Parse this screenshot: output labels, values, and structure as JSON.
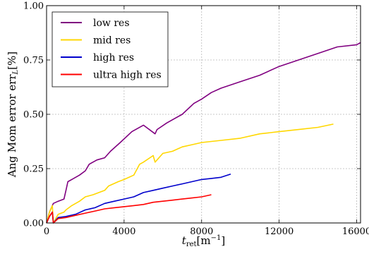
{
  "chart_data": {
    "type": "line",
    "title": "",
    "xlabel": "t_ret[m^-1]",
    "xlabel_parts": {
      "main": "t",
      "sub": "ret",
      "unit_open": "[m",
      "unit_sup": "−1",
      "unit_close": "]"
    },
    "ylabel": "Ang Mom error err_L[%]",
    "ylabel_parts": {
      "main": "Ang Mom error err",
      "sub": "L",
      "unit": "[%]"
    },
    "xlim": [
      0,
      16200
    ],
    "ylim": [
      0,
      1.0
    ],
    "xticks": [
      0,
      4000,
      8000,
      12000,
      16000
    ],
    "xtick_labels": [
      "0",
      "4000",
      "8000",
      "12000",
      "16000"
    ],
    "yticks": [
      0,
      0.25,
      0.5,
      0.75,
      1.0
    ],
    "ytick_labels": [
      "0.00",
      "0.25",
      "0.50",
      "0.75",
      "1.00"
    ],
    "grid": true,
    "legend_position": "top-left",
    "series": [
      {
        "name": "low res",
        "color": "#800080",
        "x": [
          0,
          150,
          300,
          350,
          600,
          900,
          1000,
          1100,
          1300,
          1700,
          2000,
          2200,
          2600,
          3000,
          3300,
          3800,
          4400,
          5000,
          5600,
          5700,
          6200,
          7000,
          7600,
          8000,
          8500,
          9000,
          10000,
          11000,
          12000,
          13000,
          14000,
          15000,
          16000,
          16200
        ],
        "y": [
          0.0,
          0.05,
          0.08,
          0.09,
          0.1,
          0.11,
          0.15,
          0.19,
          0.2,
          0.22,
          0.24,
          0.27,
          0.29,
          0.3,
          0.33,
          0.37,
          0.42,
          0.45,
          0.41,
          0.43,
          0.46,
          0.5,
          0.55,
          0.57,
          0.6,
          0.62,
          0.65,
          0.68,
          0.72,
          0.75,
          0.78,
          0.81,
          0.82,
          0.83
        ]
      },
      {
        "name": "mid res",
        "color": "#ffd700",
        "x": [
          0,
          150,
          300,
          350,
          600,
          900,
          1000,
          1300,
          1700,
          2000,
          2400,
          3000,
          3200,
          3700,
          4000,
          4500,
          4800,
          5000,
          5500,
          5600,
          6000,
          6500,
          7000,
          7500,
          8000,
          8500,
          9000,
          10000,
          11000,
          12000,
          13000,
          14000,
          14800
        ],
        "y": [
          0.0,
          0.05,
          0.08,
          0.0,
          0.04,
          0.05,
          0.06,
          0.08,
          0.1,
          0.12,
          0.13,
          0.15,
          0.17,
          0.19,
          0.2,
          0.22,
          0.27,
          0.28,
          0.31,
          0.28,
          0.32,
          0.33,
          0.35,
          0.36,
          0.37,
          0.375,
          0.38,
          0.39,
          0.41,
          0.42,
          0.43,
          0.44,
          0.455
        ]
      },
      {
        "name": "high res",
        "color": "#0000cc",
        "x": [
          0,
          150,
          300,
          350,
          600,
          1000,
          1500,
          2000,
          2500,
          3000,
          3500,
          4000,
          4500,
          5000,
          5500,
          6000,
          6500,
          7000,
          7500,
          8000,
          8500,
          9000,
          9500
        ],
        "y": [
          0.0,
          0.03,
          0.05,
          0.0,
          0.025,
          0.03,
          0.04,
          0.06,
          0.07,
          0.09,
          0.1,
          0.11,
          0.12,
          0.14,
          0.15,
          0.16,
          0.17,
          0.18,
          0.19,
          0.2,
          0.205,
          0.21,
          0.225
        ]
      },
      {
        "name": "ultra high res",
        "color": "#ff0000",
        "x": [
          0,
          150,
          300,
          350,
          600,
          1000,
          1500,
          2000,
          2500,
          3000,
          3500,
          4000,
          4500,
          5000,
          5500,
          6000,
          6500,
          7000,
          7500,
          8000,
          8500
        ],
        "y": [
          0.0,
          0.03,
          0.05,
          0.0,
          0.02,
          0.025,
          0.035,
          0.045,
          0.055,
          0.065,
          0.07,
          0.075,
          0.08,
          0.085,
          0.095,
          0.1,
          0.105,
          0.11,
          0.115,
          0.12,
          0.13
        ]
      }
    ]
  }
}
